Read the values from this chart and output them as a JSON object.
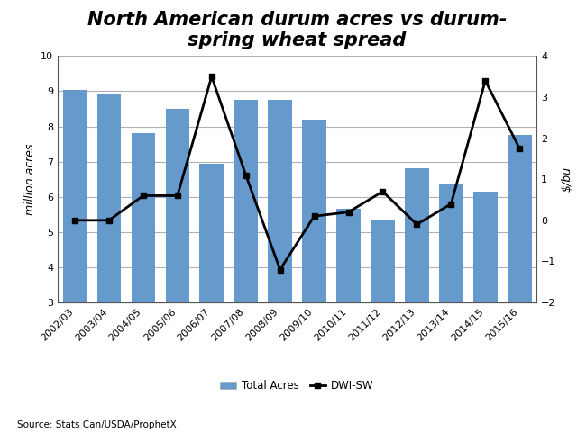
{
  "categories": [
    "2002/03",
    "2003/04",
    "2004/05",
    "2005/06",
    "2006/07",
    "2007/08",
    "2008/09",
    "2009/10",
    "2010/11",
    "2011/12",
    "2012/13",
    "2013/14",
    "2014/15",
    "2015/16"
  ],
  "bar_values": [
    9.05,
    8.9,
    7.8,
    8.5,
    6.95,
    8.75,
    8.75,
    8.2,
    5.65,
    5.35,
    6.8,
    6.35,
    6.15,
    7.75
  ],
  "line_values": [
    0.0,
    0.0,
    0.6,
    0.6,
    3.5,
    1.1,
    -1.2,
    0.1,
    0.2,
    0.7,
    -0.1,
    0.4,
    3.4,
    1.75
  ],
  "bar_color": "#6699cc",
  "line_color": "#000000",
  "title_line1": "North American durum acres vs durum-",
  "title_line2": "spring wheat spread",
  "ylabel_left": "million acres",
  "ylabel_right": "$/bu",
  "ylim_left": [
    3.0,
    10.0
  ],
  "ylim_right": [
    -2.0,
    4.0
  ],
  "yticks_left": [
    3.0,
    4.0,
    5.0,
    6.0,
    7.0,
    8.0,
    9.0,
    10.0
  ],
  "yticks_right": [
    -2.0,
    -1.0,
    0.0,
    1.0,
    2.0,
    3.0,
    4.0
  ],
  "legend_labels": [
    "Total Acres",
    "DWI-SW"
  ],
  "source_text": "Source: Stats Can/USDA/ProphetX",
  "background_color": "#ffffff",
  "grid_color": "#b0b0b0",
  "title_fontsize": 15,
  "axis_label_fontsize": 9,
  "tick_fontsize": 8,
  "source_fontsize": 7.5,
  "legend_fontsize": 8.5,
  "bar_width": 0.7,
  "line_width": 2.0,
  "marker_size": 5
}
